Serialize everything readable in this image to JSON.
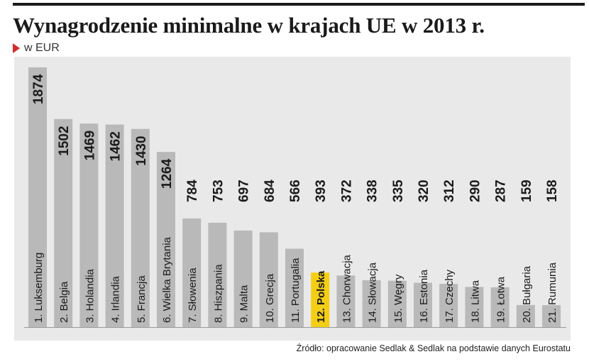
{
  "chart_title": "Wynagrodzenie minimalne w krajach UE w 2013 r.",
  "chart_subtitle": "w EUR",
  "source_note": "Źródło: opracowanie Sedlak & Sedlak na podstawie danych Eurostatu",
  "colors": {
    "bar": "#b9b9b9",
    "highlight_bar": "#f4ce14",
    "plot_background": "#e9e9e9",
    "marker": "#d52b2b"
  },
  "chart_data": {
    "type": "bar",
    "title": "Wynagrodzenie minimalne w krajach UE w 2013 r.",
    "subtitle": "w EUR",
    "categories": [
      "1. Luksemburg",
      "2. Belgia",
      "3. Holandia",
      "4. Irlandia",
      "5. Francja",
      "6. Wielka Brytania",
      "7. Słowenia",
      "8. Hiszpania",
      "9. Malta",
      "10. Grecja",
      "11. Portugalia",
      "12. Polska",
      "13. Chorwacja",
      "14. Słowacja",
      "15. Węgry",
      "16. Estonia",
      "17. Czechy",
      "18. Litwa",
      "19. Łotwa",
      "20. Bułgaria",
      "21. Rumunia"
    ],
    "values": [
      1874,
      1502,
      1469,
      1462,
      1430,
      1264,
      784,
      753,
      697,
      684,
      566,
      393,
      372,
      338,
      335,
      320,
      312,
      290,
      287,
      159,
      158
    ],
    "highlight": "12. Polska",
    "ylim": [
      0,
      1874
    ],
    "grid": false,
    "legend": "none"
  }
}
